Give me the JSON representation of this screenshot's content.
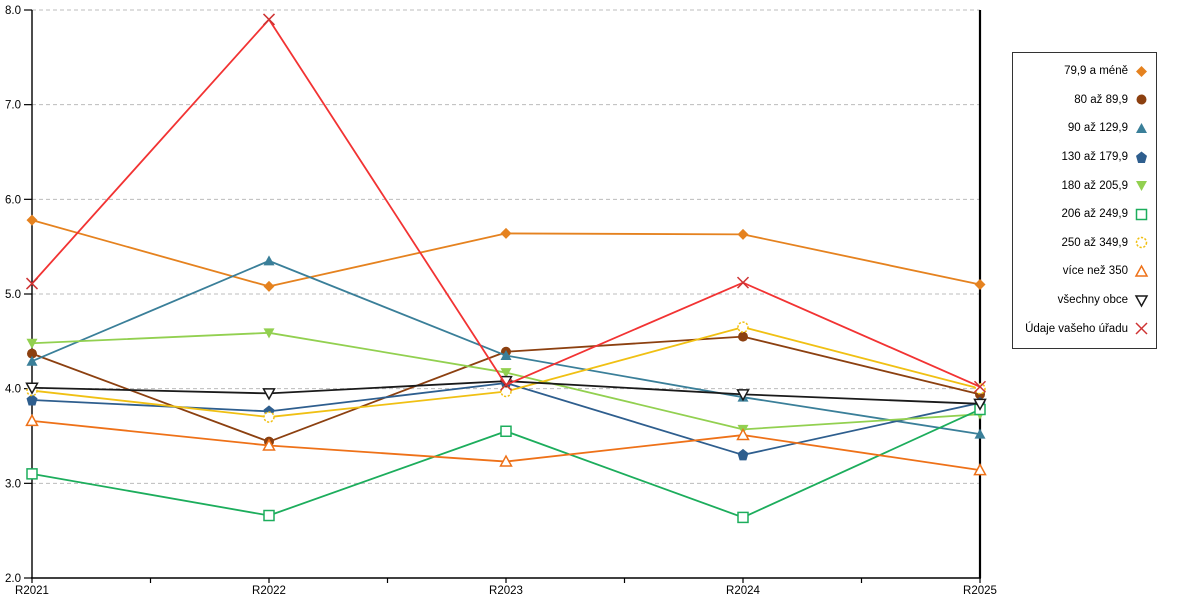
{
  "chart_data": {
    "type": "line",
    "title": "",
    "xlabel": "",
    "ylabel": "",
    "categories": [
      "R2021",
      "R2022",
      "R2023",
      "R2024",
      "R2025"
    ],
    "ylim": [
      2.0,
      8.0
    ],
    "ytick_step": 1.0,
    "ytick_labels": [
      "8.0",
      "7.0",
      "6.0",
      "5.0",
      "4.0",
      "3.0",
      "2.0"
    ],
    "grid": "horizontal-dashed",
    "legend_position": "right-box",
    "series": [
      {
        "name": "79,9 a méně",
        "color": "#E5821F",
        "marker": "diamond-filled",
        "values": [
          5.78,
          5.08,
          5.64,
          5.63,
          5.1
        ]
      },
      {
        "name": "80 až 89,9",
        "color": "#8C4010",
        "marker": "circle-filled",
        "values": [
          4.37,
          3.44,
          4.39,
          4.55,
          3.94
        ]
      },
      {
        "name": "90 až 129,9",
        "color": "#3A7F99",
        "marker": "triangle-up-filled",
        "values": [
          4.29,
          5.35,
          4.35,
          3.91,
          3.52
        ]
      },
      {
        "name": "130 až 179,9",
        "color": "#2E5E8E",
        "marker": "pentagon-filled",
        "values": [
          3.88,
          3.76,
          4.06,
          3.3,
          3.85
        ]
      },
      {
        "name": "180 až 205,9",
        "color": "#92D050",
        "marker": "triangle-down-filled",
        "values": [
          4.48,
          4.59,
          4.17,
          3.57,
          3.73
        ]
      },
      {
        "name": "206 až 249,9",
        "color": "#1CAD5C",
        "marker": "square-open",
        "values": [
          3.1,
          2.66,
          3.55,
          2.64,
          3.78
        ]
      },
      {
        "name": "250 až 349,9",
        "color": "#F0C013",
        "marker": "circle-open-dashed",
        "values": [
          3.98,
          3.7,
          3.97,
          4.65,
          4.0
        ]
      },
      {
        "name": "více než 350",
        "color": "#EE7118",
        "marker": "triangle-up-open",
        "values": [
          3.66,
          3.4,
          3.23,
          3.51,
          3.14
        ]
      },
      {
        "name": "všechny obce",
        "color": "#1A1A1A",
        "marker": "triangle-down-open",
        "values": [
          4.01,
          3.95,
          4.08,
          3.94,
          3.84
        ]
      },
      {
        "name": "Údaje vašeho úřadu",
        "color": "#F23333",
        "marker_color": "#CE3333",
        "marker": "x-cross",
        "values": [
          5.11,
          7.9,
          4.04,
          5.12,
          4.02
        ]
      }
    ]
  }
}
